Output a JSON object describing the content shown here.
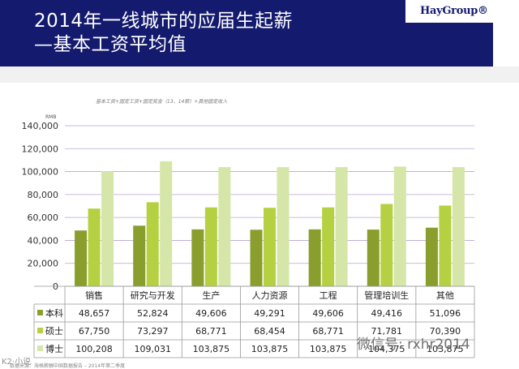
{
  "header": {
    "title_line1": "2014年一线城市的应届生起薪",
    "title_line2": "—基本工资平均值",
    "logo": "HayGroup®"
  },
  "subtitle": "基本工资+固定工资+固定奖金（13、14薪）+其他固定收入",
  "footer": "数据来源：海格薪酬中国数据报告 – 2014年第二季度",
  "watermark": "微信号: rxhr2014",
  "watermark_left": "K2·小说",
  "colors": {
    "bachelor": "#8a9e2d",
    "master": "#b5d142",
    "doctor": "#d5e6a8",
    "grid": "#b9a3d6",
    "title_bg": "#141a6e"
  },
  "chart_data": {
    "type": "bar",
    "unit": "RMB",
    "categories": [
      "销售",
      "研究与开发",
      "生产",
      "人力资源",
      "工程",
      "管理培训生",
      "其他"
    ],
    "series": [
      {
        "name": "本科",
        "values": [
          48657,
          52824,
          49606,
          49291,
          49606,
          49416,
          51096
        ],
        "labels": [
          "48,657",
          "52,824",
          "49,606",
          "49,291",
          "49,606",
          "49,416",
          "51,096"
        ]
      },
      {
        "name": "硕士",
        "values": [
          67750,
          73297,
          68771,
          68454,
          68771,
          71781,
          70390
        ],
        "labels": [
          "67,750",
          "73,297",
          "68,771",
          "68,454",
          "68,771",
          "71,781",
          "70,390"
        ]
      },
      {
        "name": "博士",
        "values": [
          100208,
          109031,
          103875,
          103875,
          103875,
          104375,
          103875
        ],
        "labels": [
          "100,208",
          "109,031",
          "103,875",
          "103,875",
          "103,875",
          "104,375",
          "103,875"
        ]
      }
    ],
    "yticks": [
      "0",
      "20,000",
      "40,000",
      "60,000",
      "80,000",
      "100,000",
      "120,000",
      "140,000"
    ],
    "ylim": [
      0,
      140000
    ],
    "grid": true,
    "legend": "table-left"
  }
}
